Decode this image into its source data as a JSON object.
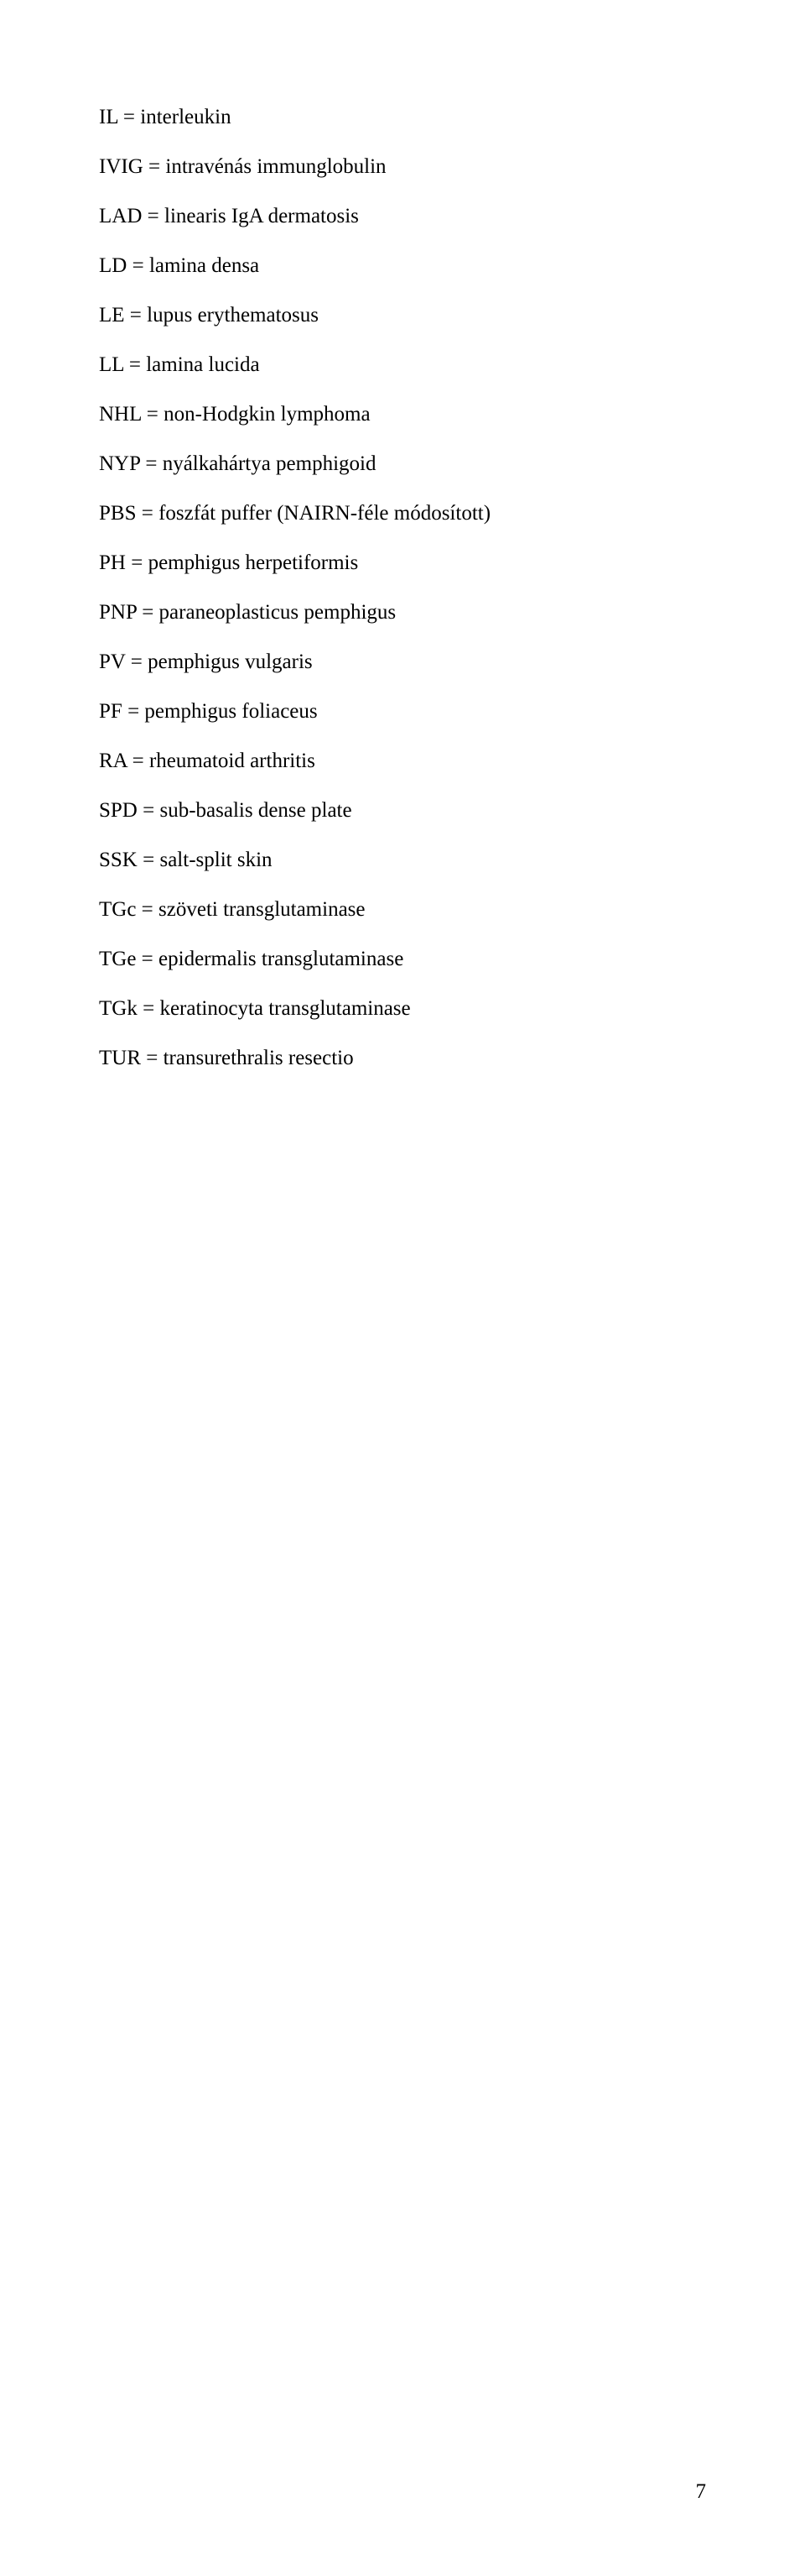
{
  "abbreviations": [
    {
      "abbr": "IL",
      "def": "interleukin"
    },
    {
      "abbr": "IVIG",
      "def": "intravénás immunglobulin"
    },
    {
      "abbr": "LAD",
      "def": "linearis IgA dermatosis"
    },
    {
      "abbr": "LD",
      "def": "lamina densa"
    },
    {
      "abbr": "LE",
      "def": "lupus erythematosus"
    },
    {
      "abbr": "LL",
      "def": "lamina lucida"
    },
    {
      "abbr": "NHL",
      "def": "non-Hodgkin lymphoma"
    },
    {
      "abbr": "NYP",
      "def": "nyálkahártya pemphigoid"
    },
    {
      "abbr": "PBS",
      "def": "foszfát puffer (NAIRN-féle módosított)"
    },
    {
      "abbr": "PH",
      "def": "pemphigus herpetiformis"
    },
    {
      "abbr": "PNP",
      "def": "paraneoplasticus pemphigus"
    },
    {
      "abbr": "PV",
      "def": "pemphigus vulgaris"
    },
    {
      "abbr": "PF",
      "def": "pemphigus foliaceus"
    },
    {
      "abbr": "RA",
      "def": "rheumatoid arthritis"
    },
    {
      "abbr": "SPD",
      "def": "sub-basalis dense plate"
    },
    {
      "abbr": "SSK",
      "def": "salt-split skin"
    },
    {
      "abbr": "TGc",
      "def": "szöveti transglutaminase"
    },
    {
      "abbr": "TGe",
      "def": "epidermalis transglutaminase"
    },
    {
      "abbr": "TGk",
      "def": "keratinocyta transglutaminase"
    },
    {
      "abbr": "TUR",
      "def": "transurethralis resectio"
    }
  ],
  "separator": " = ",
  "page_number": "7",
  "text_color": "#000000",
  "background_color": "#ffffff",
  "font_size_pt": 12,
  "line_spacing": 2.36
}
